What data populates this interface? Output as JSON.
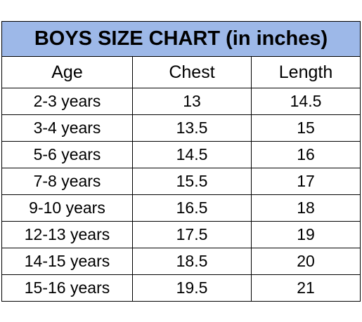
{
  "header": {
    "title": "BOYS SIZE CHART (in inches)"
  },
  "table": {
    "columns": [
      "Age",
      "Chest",
      "Length"
    ],
    "rows": [
      [
        "2-3 years",
        13,
        14.5
      ],
      [
        "3-4 years",
        13.5,
        15
      ],
      [
        "5-6 years",
        14.5,
        16
      ],
      [
        "7-8 years",
        15.5,
        17
      ],
      [
        "9-10 years",
        16.5,
        18
      ],
      [
        "12-13 years",
        17.5,
        19
      ],
      [
        "14-15 years",
        18.5,
        20
      ],
      [
        "15-16 years",
        19.5,
        21
      ]
    ]
  }
}
